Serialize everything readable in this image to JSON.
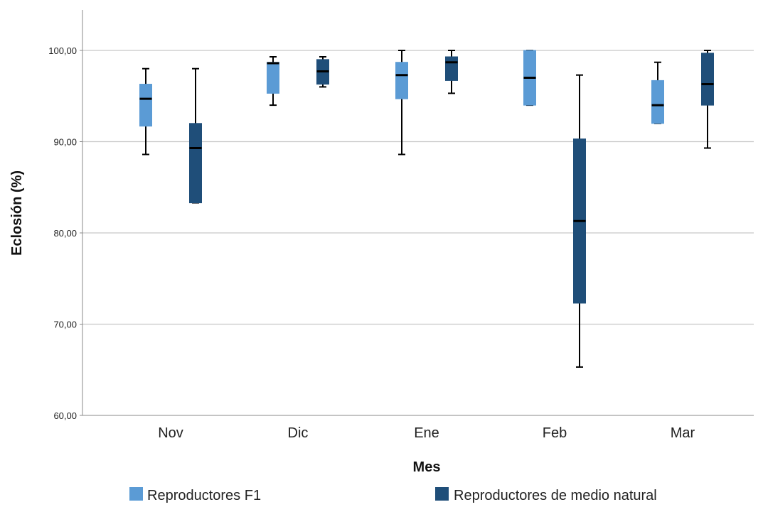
{
  "chart_data": {
    "type": "boxplot",
    "xlabel": "Mes",
    "ylabel": "Eclosión (%)",
    "ylim": [
      60,
      104.5
    ],
    "yticks": [
      60,
      70,
      80,
      90,
      100
    ],
    "ytick_labels": [
      "60,00",
      "70,00",
      "80,00",
      "90,00",
      "100,00"
    ],
    "categories": [
      "Nov",
      "Dic",
      "Ene",
      "Feb",
      "Mar"
    ],
    "grid": true,
    "legend_position": "bottom",
    "series": [
      {
        "name": "Reproductores F1",
        "color": "#5b9bd5",
        "boxes": [
          {
            "min": 88.6,
            "q1": 91.7,
            "median": 94.7,
            "q3": 96.3,
            "max": 98.0
          },
          {
            "min": 94.0,
            "q1": 95.3,
            "median": 98.6,
            "q3": 98.7,
            "max": 99.3
          },
          {
            "min": 88.6,
            "q1": 94.7,
            "median": 97.3,
            "q3": 98.7,
            "max": 100.0
          },
          {
            "min": 94.0,
            "q1": 94.0,
            "median": 97.0,
            "q3": 100.0,
            "max": 100.0
          },
          {
            "min": 92.0,
            "q1": 92.0,
            "median": 94.0,
            "q3": 96.7,
            "max": 98.7
          }
        ]
      },
      {
        "name": "Reproductores de medio natural",
        "color": "#1f4e79",
        "boxes": [
          {
            "min": 83.3,
            "q1": 83.3,
            "median": 89.3,
            "q3": 92.0,
            "max": 98.0
          },
          {
            "min": 96.0,
            "q1": 96.3,
            "median": 97.7,
            "q3": 99.0,
            "max": 99.3
          },
          {
            "min": 95.3,
            "q1": 96.7,
            "median": 98.7,
            "q3": 99.3,
            "max": 100.0
          },
          {
            "min": 65.3,
            "q1": 72.3,
            "median": 81.3,
            "q3": 90.3,
            "max": 97.3
          },
          {
            "min": 89.3,
            "q1": 94.0,
            "median": 96.3,
            "q3": 99.7,
            "max": 100.0
          }
        ]
      }
    ]
  }
}
